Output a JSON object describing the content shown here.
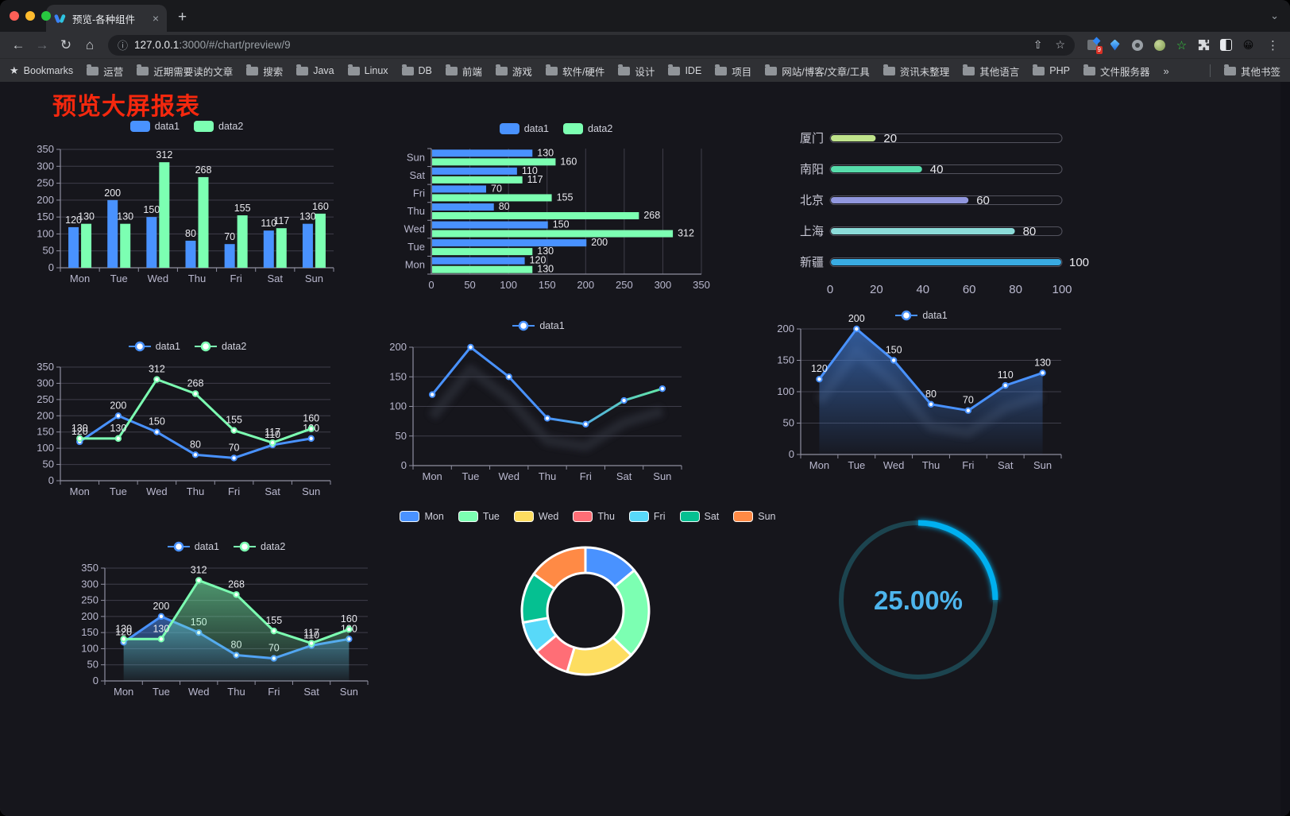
{
  "browser": {
    "tab": {
      "title": "预览-各种组件",
      "close_glyph": "×",
      "new_tab_glyph": "+",
      "chevron_glyph": "⌄"
    },
    "nav": {
      "back": "←",
      "forward": "→",
      "reload": "↻",
      "home": "⌂"
    },
    "url": {
      "info_glyph": "ⓘ",
      "host": "127.0.0.1",
      "rest": ":3000/#/chart/preview/9",
      "share_glyph": "⇧",
      "star_glyph": "☆"
    },
    "ext_badge": "9",
    "ext_star_glyph": "☆",
    "ext_emoji": "😀",
    "kebab_glyph": "⋮",
    "bookmarks_label": "Bookmarks",
    "bookmarks": [
      "运营",
      "近期需要读的文章",
      "搜索",
      "Java",
      "Linux",
      "DB",
      "前端",
      "游戏",
      "软件/硬件",
      "设计",
      "IDE",
      "项目",
      "网站/博客/文章/工具",
      "资讯未整理",
      "其他语言",
      "PHP",
      "文件服务器"
    ],
    "bookmarks_overflow": "»",
    "other_bookmarks": "其他书签"
  },
  "page": {
    "title": "预览大屏报表",
    "title_color": "#f5280e"
  },
  "theme": {
    "background": "#16161c",
    "grid": "#3f3e4a",
    "axis": "#8f8fa0",
    "tick_label": "#b9b8ce",
    "value_label": "#e9e9ee",
    "legend_text": "#d0d1dc"
  },
  "chart_data": [
    {
      "id": "grouped-bar",
      "type": "bar",
      "categories": [
        "Mon",
        "Tue",
        "Wed",
        "Thu",
        "Fri",
        "Sat",
        "Sun"
      ],
      "series": [
        {
          "name": "data1",
          "color": "#4992ff",
          "values": [
            120,
            200,
            150,
            80,
            70,
            110,
            130
          ]
        },
        {
          "name": "data2",
          "color": "#7cffb2",
          "values": [
            130,
            130,
            312,
            268,
            155,
            117,
            160
          ]
        }
      ],
      "ylim": [
        0,
        350
      ],
      "ytick_step": 50,
      "legend_position": "top",
      "value_labels": true
    },
    {
      "id": "horizontal-bar",
      "type": "bar-horizontal",
      "categories": [
        "Mon",
        "Tue",
        "Wed",
        "Thu",
        "Fri",
        "Sat",
        "Sun"
      ],
      "row_order_top_to_bottom": [
        "Sun",
        "Sat",
        "Fri",
        "Thu",
        "Wed",
        "Tue",
        "Mon"
      ],
      "series": [
        {
          "name": "data1",
          "color": "#4992ff",
          "values": [
            120,
            200,
            150,
            80,
            70,
            110,
            130
          ]
        },
        {
          "name": "data2",
          "color": "#7cffb2",
          "values": [
            130,
            130,
            312,
            268,
            155,
            117,
            160
          ]
        }
      ],
      "xlim": [
        0,
        350
      ],
      "xtick_step": 50,
      "legend_position": "top",
      "value_labels": true
    },
    {
      "id": "city-progress",
      "type": "progress-bars",
      "categories": [
        "厦门",
        "南阳",
        "北京",
        "上海",
        "新疆"
      ],
      "values": [
        20,
        40,
        60,
        80,
        100
      ],
      "bar_colors": [
        "#bfe38b",
        "#57dcab",
        "#9197de",
        "#8cdcd9",
        "#39abe2"
      ],
      "xlim": [
        0,
        100
      ],
      "xticks": [
        0,
        20,
        40,
        60,
        80,
        100
      ]
    },
    {
      "id": "two-line",
      "type": "line",
      "categories": [
        "Mon",
        "Tue",
        "Wed",
        "Thu",
        "Fri",
        "Sat",
        "Sun"
      ],
      "series": [
        {
          "name": "data1",
          "color": "#4992ff",
          "values": [
            120,
            200,
            150,
            80,
            70,
            110,
            130
          ]
        },
        {
          "name": "data2",
          "color": "#7cffb2",
          "values": [
            130,
            130,
            312,
            268,
            155,
            117,
            160
          ]
        }
      ],
      "ylim": [
        0,
        350
      ],
      "ytick_step": 50,
      "point_labels": true,
      "legend_position": "top"
    },
    {
      "id": "gradient-line",
      "type": "line",
      "categories": [
        "Mon",
        "Tue",
        "Wed",
        "Thu",
        "Fri",
        "Sat",
        "Sun"
      ],
      "series": [
        {
          "name": "data1",
          "color": "#4992ff",
          "color_end": "#63e8a5",
          "values": [
            120,
            200,
            150,
            80,
            70,
            110,
            130
          ]
        }
      ],
      "ylim": [
        0,
        200
      ],
      "ytick_step": 50,
      "point_labels": false,
      "shadow": true,
      "legend_position": "top"
    },
    {
      "id": "blue-area",
      "type": "area",
      "categories": [
        "Mon",
        "Tue",
        "Wed",
        "Thu",
        "Fri",
        "Sat",
        "Sun"
      ],
      "series": [
        {
          "name": "data1",
          "color": "#4992ff",
          "values": [
            120,
            200,
            150,
            80,
            70,
            110,
            130
          ]
        }
      ],
      "ylim": [
        0,
        200
      ],
      "ytick_step": 50,
      "point_labels": true,
      "shadow": true,
      "legend_position": "top"
    },
    {
      "id": "two-area",
      "type": "area",
      "categories": [
        "Mon",
        "Tue",
        "Wed",
        "Thu",
        "Fri",
        "Sat",
        "Sun"
      ],
      "series": [
        {
          "name": "data1",
          "color": "#4992ff",
          "values": [
            120,
            200,
            150,
            80,
            70,
            110,
            130
          ]
        },
        {
          "name": "data2",
          "color": "#7cffb2",
          "values": [
            130,
            130,
            312,
            268,
            155,
            117,
            160
          ]
        }
      ],
      "ylim": [
        0,
        350
      ],
      "ytick_step": 50,
      "point_labels": true,
      "legend_position": "top"
    },
    {
      "id": "donut",
      "type": "pie",
      "categories": [
        "Mon",
        "Tue",
        "Wed",
        "Thu",
        "Fri",
        "Sat",
        "Sun"
      ],
      "values": [
        120,
        200,
        150,
        80,
        70,
        110,
        130
      ],
      "colors": [
        "#4992ff",
        "#7cffb2",
        "#fddd60",
        "#ff6e76",
        "#58d9f9",
        "#05c091",
        "#ff8a45"
      ],
      "inner_radius_ratio": 0.6,
      "border_color": "#ffffff",
      "legend_position": "top"
    },
    {
      "id": "gauge",
      "type": "gauge",
      "value": 25,
      "max": 100,
      "label": "25.00%",
      "progress_color": "#00b0f0",
      "track_color": "#1c444f",
      "label_color": "#4db5ed"
    }
  ]
}
